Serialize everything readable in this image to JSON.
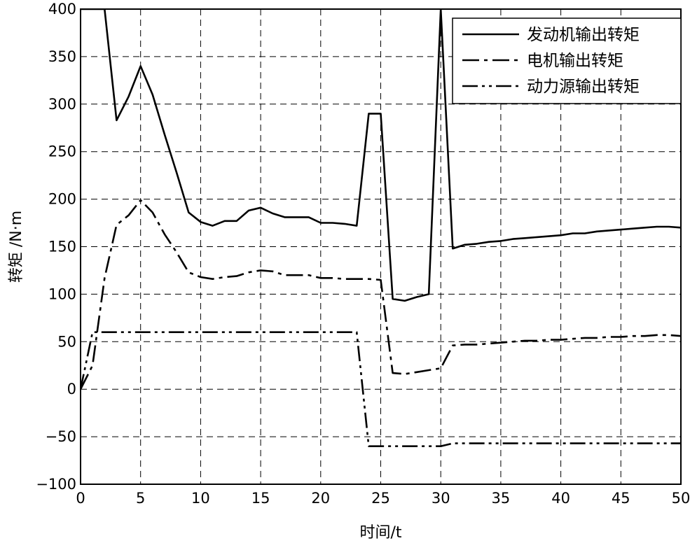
{
  "chart_data": {
    "type": "line",
    "title": "",
    "xlabel": "时间/t",
    "ylabel": "转矩 /N·m",
    "xlim": [
      0,
      50
    ],
    "ylim": [
      -100,
      400
    ],
    "xticks": [
      0,
      5,
      10,
      15,
      20,
      25,
      30,
      35,
      40,
      45,
      50
    ],
    "yticks": [
      -100,
      -50,
      0,
      50,
      100,
      150,
      200,
      250,
      300,
      350,
      400
    ],
    "xtick_labels": [
      "0",
      "5",
      "10",
      "15",
      "20",
      "25",
      "30",
      "35",
      "40",
      "45",
      "50"
    ],
    "ytick_labels": [
      "−100",
      "−50",
      "0",
      "50",
      "100",
      "150",
      "200",
      "250",
      "300",
      "350",
      "400"
    ],
    "grid": true,
    "legend_position": "top-right",
    "series": [
      {
        "name": "发动机输出转矩",
        "line_style": "solid",
        "x": [
          0,
          2,
          3,
          4,
          5,
          6,
          7,
          8,
          9,
          10,
          11,
          12,
          13,
          14,
          15,
          16,
          17,
          18,
          19,
          20,
          21,
          22,
          23,
          24,
          25,
          26,
          27,
          28,
          29,
          30,
          31,
          32,
          33,
          34,
          35,
          36,
          37,
          38,
          39,
          40,
          41,
          42,
          43,
          44,
          45,
          46,
          47,
          48,
          49,
          50
        ],
        "y": [
          400,
          400,
          283,
          308,
          340,
          310,
          268,
          228,
          186,
          176,
          172,
          177,
          177,
          188,
          191,
          185,
          181,
          181,
          181,
          175,
          175,
          174,
          172,
          290,
          290,
          95,
          93,
          97,
          100,
          400,
          148,
          152,
          153,
          155,
          156,
          158,
          159,
          160,
          161,
          162,
          164,
          164,
          166,
          167,
          168,
          169,
          170,
          171,
          171,
          170
        ]
      },
      {
        "name": "电机输出转矩",
        "line_style": "dash-dot",
        "x": [
          0,
          1,
          2,
          3,
          4,
          5,
          6,
          7,
          8,
          9,
          10,
          11,
          12,
          13,
          14,
          15,
          16,
          17,
          18,
          19,
          20,
          21,
          22,
          23,
          24,
          25,
          26,
          27,
          28,
          29,
          30,
          31,
          32,
          33,
          34,
          35,
          36,
          37,
          38,
          39,
          40,
          41,
          42,
          43,
          44,
          45,
          46,
          47,
          48,
          49,
          50
        ],
        "y": [
          0,
          25,
          117,
          173,
          183,
          199,
          186,
          163,
          144,
          123,
          118,
          116,
          118,
          119,
          123,
          125,
          124,
          120,
          120,
          120,
          117,
          117,
          116,
          116,
          116,
          115,
          17,
          16,
          18,
          20,
          22,
          46,
          47,
          47,
          48,
          49,
          50,
          51,
          51,
          52,
          52,
          53,
          54,
          54,
          55,
          55,
          56,
          56,
          57,
          57,
          56
        ]
      },
      {
        "name": "动力源输出转矩",
        "line_style": "dash-dot-dot",
        "x": [
          0,
          1,
          2,
          3,
          4,
          5,
          6,
          7,
          8,
          9,
          10,
          11,
          12,
          13,
          14,
          15,
          16,
          17,
          18,
          19,
          20,
          21,
          22,
          23,
          24,
          25,
          26,
          27,
          28,
          29,
          30,
          31,
          32,
          33,
          34,
          35,
          36,
          37,
          38,
          39,
          40,
          41,
          42,
          43,
          44,
          45,
          46,
          47,
          48,
          49,
          50
        ],
        "y": [
          0,
          60,
          60,
          60,
          60,
          60,
          60,
          60,
          60,
          60,
          60,
          60,
          60,
          60,
          60,
          60,
          60,
          60,
          60,
          60,
          60,
          60,
          60,
          60,
          -60,
          -60,
          -60,
          -60,
          -60,
          -60,
          -60,
          -57,
          -57,
          -57,
          -57,
          -57,
          -57,
          -57,
          -57,
          -57,
          -57,
          -57,
          -57,
          -57,
          -57,
          -57,
          -57,
          -57,
          -57,
          -57,
          -57
        ]
      }
    ]
  }
}
